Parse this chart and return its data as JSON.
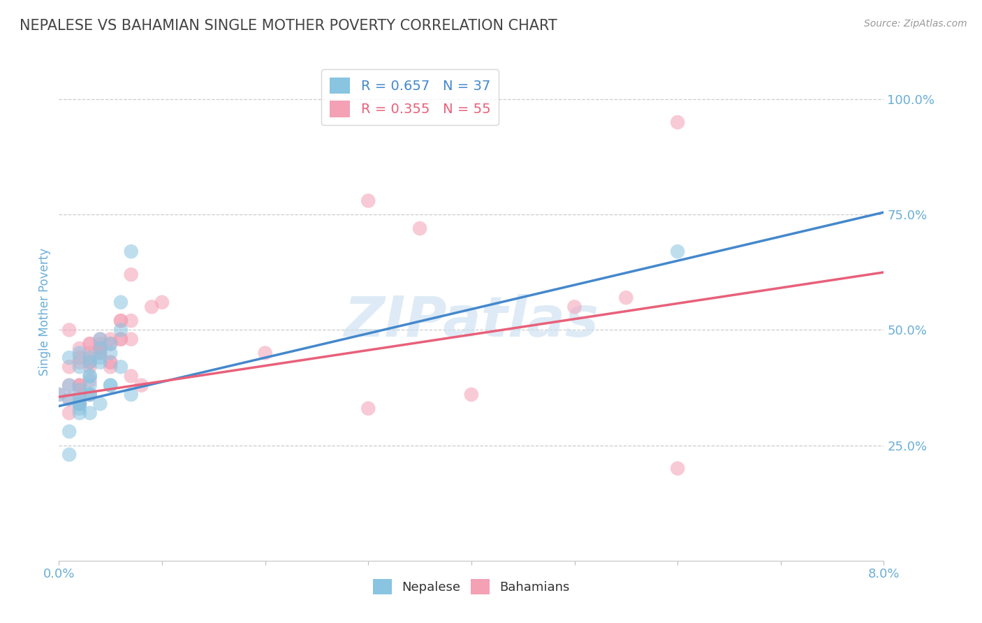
{
  "title": "NEPALESE VS BAHAMIAN SINGLE MOTHER POVERTY CORRELATION CHART",
  "source_text": "Source: ZipAtlas.com",
  "ylabel": "Single Mother Poverty",
  "xlim": [
    0.0,
    0.08
  ],
  "ylim": [
    0.0,
    1.08
  ],
  "y_ticks": [
    0.25,
    0.5,
    0.75,
    1.0
  ],
  "y_tick_labels": [
    "25.0%",
    "50.0%",
    "75.0%",
    "100.0%"
  ],
  "watermark": "ZIPatlas",
  "nepalese_R": 0.657,
  "nepalese_N": 37,
  "bahamian_R": 0.355,
  "bahamian_N": 55,
  "nepalese_color": "#89c4e1",
  "bahamian_color": "#f4a0b5",
  "nepalese_line_color": "#4488cc",
  "bahamian_line_color": "#e8607a",
  "title_color": "#444444",
  "axis_label_color": "#6aaed6",
  "tick_label_color": "#6aaed6",
  "nepalese_scatter": {
    "x": [
      0.0,
      0.001,
      0.001,
      0.001,
      0.001,
      0.002,
      0.002,
      0.002,
      0.002,
      0.002,
      0.003,
      0.003,
      0.003,
      0.003,
      0.003,
      0.003,
      0.004,
      0.004,
      0.004,
      0.004,
      0.005,
      0.005,
      0.005,
      0.006,
      0.006,
      0.007,
      0.007,
      0.002,
      0.002,
      0.002,
      0.003,
      0.003,
      0.004,
      0.005,
      0.006,
      0.06,
      0.001
    ],
    "y": [
      0.36,
      0.44,
      0.38,
      0.35,
      0.28,
      0.34,
      0.45,
      0.37,
      0.42,
      0.33,
      0.4,
      0.36,
      0.43,
      0.44,
      0.36,
      0.32,
      0.43,
      0.44,
      0.46,
      0.48,
      0.47,
      0.45,
      0.38,
      0.5,
      0.56,
      0.67,
      0.36,
      0.32,
      0.35,
      0.34,
      0.38,
      0.4,
      0.34,
      0.38,
      0.42,
      0.67,
      0.23
    ]
  },
  "bahamian_scatter": {
    "x": [
      0.0,
      0.001,
      0.001,
      0.001,
      0.001,
      0.002,
      0.002,
      0.002,
      0.002,
      0.002,
      0.003,
      0.003,
      0.003,
      0.003,
      0.003,
      0.003,
      0.004,
      0.004,
      0.004,
      0.004,
      0.005,
      0.005,
      0.005,
      0.006,
      0.006,
      0.007,
      0.007,
      0.002,
      0.002,
      0.002,
      0.003,
      0.003,
      0.004,
      0.005,
      0.006,
      0.007,
      0.001,
      0.002,
      0.003,
      0.004,
      0.005,
      0.006,
      0.007,
      0.008,
      0.009,
      0.01,
      0.02,
      0.03,
      0.04,
      0.035,
      0.055,
      0.06,
      0.06,
      0.03,
      0.05
    ],
    "y": [
      0.36,
      0.5,
      0.42,
      0.35,
      0.38,
      0.34,
      0.46,
      0.38,
      0.44,
      0.36,
      0.43,
      0.45,
      0.47,
      0.39,
      0.43,
      0.36,
      0.47,
      0.46,
      0.45,
      0.48,
      0.48,
      0.47,
      0.42,
      0.52,
      0.52,
      0.62,
      0.4,
      0.34,
      0.43,
      0.38,
      0.42,
      0.44,
      0.46,
      0.43,
      0.48,
      0.52,
      0.32,
      0.38,
      0.47,
      0.45,
      0.43,
      0.48,
      0.48,
      0.38,
      0.55,
      0.56,
      0.45,
      0.33,
      0.36,
      0.72,
      0.57,
      0.2,
      0.95,
      0.78,
      0.55
    ]
  },
  "nepalese_line": {
    "x0": 0.0,
    "x1": 0.08,
    "y0": 0.335,
    "y1": 0.755
  },
  "bahamian_line": {
    "x0": 0.0,
    "x1": 0.08,
    "y0": 0.355,
    "y1": 0.625
  },
  "background_color": "#ffffff",
  "grid_color": "#cccccc"
}
